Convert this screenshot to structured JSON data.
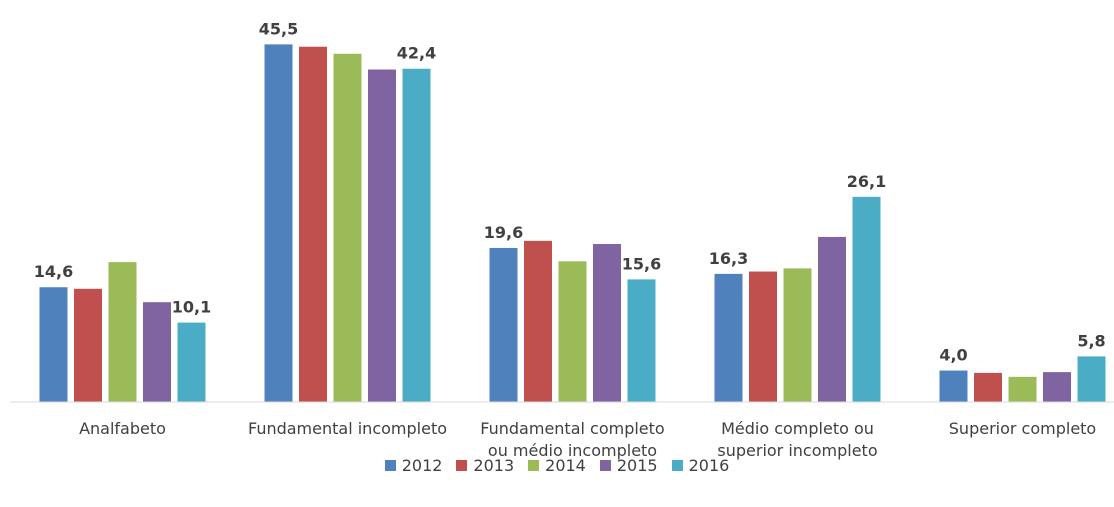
{
  "chart_data": {
    "type": "bar",
    "categories": [
      "Analfabeto",
      "Fundamental incompleto",
      "Fundamental completo\nou médio incompleto",
      "Médio completo ou\nsuperior incompleto",
      "Superior completo"
    ],
    "series": [
      {
        "name": "2012",
        "color": "#4f81bd",
        "values": [
          14.6,
          45.5,
          19.6,
          16.3,
          4.0
        ],
        "value_labels": [
          "14,6",
          "45,5",
          "19,6",
          "16,3",
          "4,0"
        ]
      },
      {
        "name": "2013",
        "color": "#c0504d",
        "values": [
          14.4,
          45.2,
          20.5,
          16.6,
          3.7
        ],
        "value_labels": [
          null,
          null,
          null,
          null,
          null
        ]
      },
      {
        "name": "2014",
        "color": "#9bbb59",
        "values": [
          17.8,
          44.3,
          17.9,
          17.0,
          3.2
        ],
        "value_labels": [
          null,
          null,
          null,
          null,
          null
        ]
      },
      {
        "name": "2015",
        "color": "#8064a2",
        "values": [
          12.7,
          42.3,
          20.1,
          21.0,
          3.8
        ],
        "value_labels": [
          null,
          null,
          null,
          null,
          null
        ]
      },
      {
        "name": "2016",
        "color": "#4bacc6",
        "values": [
          10.1,
          42.4,
          15.6,
          26.1,
          5.8
        ],
        "value_labels": [
          "10,1",
          "42,4",
          "15,6",
          "26,1",
          "5,8"
        ]
      }
    ],
    "ylim": [
      0,
      50
    ],
    "legend": "bottom"
  }
}
